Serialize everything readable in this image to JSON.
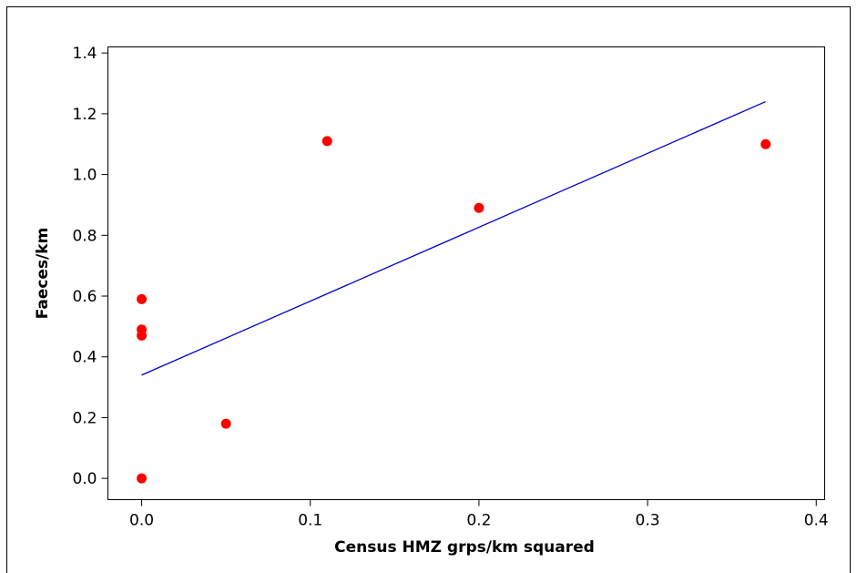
{
  "chart_data": {
    "type": "scatter",
    "title": "",
    "xlabel": "Census HMZ grps/km squared",
    "ylabel": "Faeces/km",
    "xlim": [
      -0.02,
      0.405
    ],
    "ylim": [
      -0.07,
      1.42
    ],
    "x_ticks": [
      0.0,
      0.1,
      0.2,
      0.3,
      0.4
    ],
    "x_tick_labels": [
      "0.0",
      "0.1",
      "0.2",
      "0.3",
      "0.4"
    ],
    "y_ticks": [
      0.0,
      0.2,
      0.4,
      0.6,
      0.8,
      1.0,
      1.2,
      1.4
    ],
    "y_tick_labels": [
      "0.0",
      "0.2",
      "0.4",
      "0.6",
      "0.8",
      "1.0",
      "1.2",
      "1.4"
    ],
    "grid": false,
    "legend": "none",
    "series": [
      {
        "kind": "points",
        "color": "#ff0000",
        "x": [
          0.0,
          0.0,
          0.0,
          0.0,
          0.05,
          0.11,
          0.2,
          0.37
        ],
        "y": [
          0.59,
          0.49,
          0.47,
          0.0,
          0.18,
          1.11,
          0.89,
          1.1
        ]
      },
      {
        "kind": "fit-line",
        "color": "#0000cc",
        "x": [
          0.0,
          0.37
        ],
        "y": [
          0.34,
          1.24
        ]
      }
    ]
  }
}
